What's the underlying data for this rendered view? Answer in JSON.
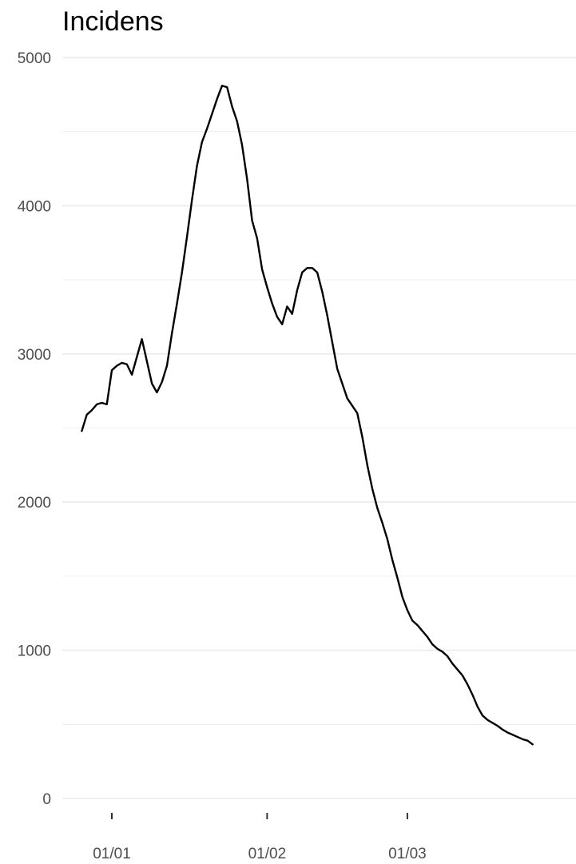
{
  "chart_data": {
    "type": "line",
    "title": "Incidens",
    "xlabel": "",
    "ylabel": "",
    "ylim": [
      0,
      5000
    ],
    "y_ticks": [
      {
        "value": 0,
        "label": "0"
      },
      {
        "value": 1000,
        "label": "1000"
      },
      {
        "value": 2000,
        "label": "2000"
      },
      {
        "value": 3000,
        "label": "3000"
      },
      {
        "value": 4000,
        "label": "4000"
      },
      {
        "value": 5000,
        "label": "5000"
      }
    ],
    "y_minor_ticks": [
      500,
      1500,
      2500,
      3500,
      4500
    ],
    "x_ticks": [
      {
        "value": "2021-01-01",
        "label": "01/01"
      },
      {
        "value": "2021-02-01",
        "label": "01/02"
      },
      {
        "value": "2021-03-01",
        "label": "01/03"
      }
    ],
    "grid": true,
    "series": [
      {
        "color": "#000000",
        "points": [
          [
            "2020-12-26",
            2480
          ],
          [
            "2020-12-27",
            2590
          ],
          [
            "2020-12-28",
            2620
          ],
          [
            "2020-12-29",
            2660
          ],
          [
            "2020-12-30",
            2670
          ],
          [
            "2020-12-31",
            2660
          ],
          [
            "2021-01-01",
            2890
          ],
          [
            "2021-01-02",
            2920
          ],
          [
            "2021-01-03",
            2940
          ],
          [
            "2021-01-04",
            2930
          ],
          [
            "2021-01-05",
            2860
          ],
          [
            "2021-01-06",
            2980
          ],
          [
            "2021-01-07",
            3100
          ],
          [
            "2021-01-08",
            2950
          ],
          [
            "2021-01-09",
            2800
          ],
          [
            "2021-01-10",
            2740
          ],
          [
            "2021-01-11",
            2810
          ],
          [
            "2021-01-12",
            2920
          ],
          [
            "2021-01-13",
            3140
          ],
          [
            "2021-01-14",
            3340
          ],
          [
            "2021-01-15",
            3550
          ],
          [
            "2021-01-16",
            3790
          ],
          [
            "2021-01-17",
            4040
          ],
          [
            "2021-01-18",
            4270
          ],
          [
            "2021-01-19",
            4430
          ],
          [
            "2021-01-20",
            4520
          ],
          [
            "2021-01-21",
            4620
          ],
          [
            "2021-01-22",
            4720
          ],
          [
            "2021-01-23",
            4810
          ],
          [
            "2021-01-24",
            4800
          ],
          [
            "2021-01-25",
            4670
          ],
          [
            "2021-01-26",
            4570
          ],
          [
            "2021-01-27",
            4410
          ],
          [
            "2021-01-28",
            4180
          ],
          [
            "2021-01-29",
            3900
          ],
          [
            "2021-01-30",
            3780
          ],
          [
            "2021-01-31",
            3570
          ],
          [
            "2021-02-01",
            3450
          ],
          [
            "2021-02-02",
            3340
          ],
          [
            "2021-02-03",
            3250
          ],
          [
            "2021-02-04",
            3200
          ],
          [
            "2021-02-05",
            3320
          ],
          [
            "2021-02-06",
            3270
          ],
          [
            "2021-02-07",
            3430
          ],
          [
            "2021-02-08",
            3550
          ],
          [
            "2021-02-09",
            3580
          ],
          [
            "2021-02-10",
            3580
          ],
          [
            "2021-02-11",
            3550
          ],
          [
            "2021-02-12",
            3420
          ],
          [
            "2021-02-13",
            3260
          ],
          [
            "2021-02-14",
            3080
          ],
          [
            "2021-02-15",
            2900
          ],
          [
            "2021-02-16",
            2800
          ],
          [
            "2021-02-17",
            2700
          ],
          [
            "2021-02-18",
            2650
          ],
          [
            "2021-02-19",
            2600
          ],
          [
            "2021-02-20",
            2440
          ],
          [
            "2021-02-21",
            2250
          ],
          [
            "2021-02-22",
            2090
          ],
          [
            "2021-02-23",
            1960
          ],
          [
            "2021-02-24",
            1860
          ],
          [
            "2021-02-25",
            1750
          ],
          [
            "2021-02-26",
            1610
          ],
          [
            "2021-02-27",
            1490
          ],
          [
            "2021-02-28",
            1360
          ],
          [
            "2021-03-01",
            1270
          ],
          [
            "2021-03-02",
            1200
          ],
          [
            "2021-03-03",
            1170
          ],
          [
            "2021-03-04",
            1130
          ],
          [
            "2021-03-05",
            1090
          ],
          [
            "2021-03-06",
            1040
          ],
          [
            "2021-03-07",
            1010
          ],
          [
            "2021-03-08",
            990
          ],
          [
            "2021-03-09",
            960
          ],
          [
            "2021-03-10",
            910
          ],
          [
            "2021-03-11",
            870
          ],
          [
            "2021-03-12",
            830
          ],
          [
            "2021-03-13",
            770
          ],
          [
            "2021-03-14",
            700
          ],
          [
            "2021-03-15",
            620
          ],
          [
            "2021-03-16",
            560
          ],
          [
            "2021-03-17",
            530
          ],
          [
            "2021-03-18",
            510
          ],
          [
            "2021-03-19",
            490
          ],
          [
            "2021-03-20",
            465
          ],
          [
            "2021-03-21",
            445
          ],
          [
            "2021-03-22",
            430
          ],
          [
            "2021-03-23",
            415
          ],
          [
            "2021-03-24",
            400
          ],
          [
            "2021-03-25",
            390
          ],
          [
            "2021-03-26",
            365
          ]
        ]
      }
    ]
  }
}
